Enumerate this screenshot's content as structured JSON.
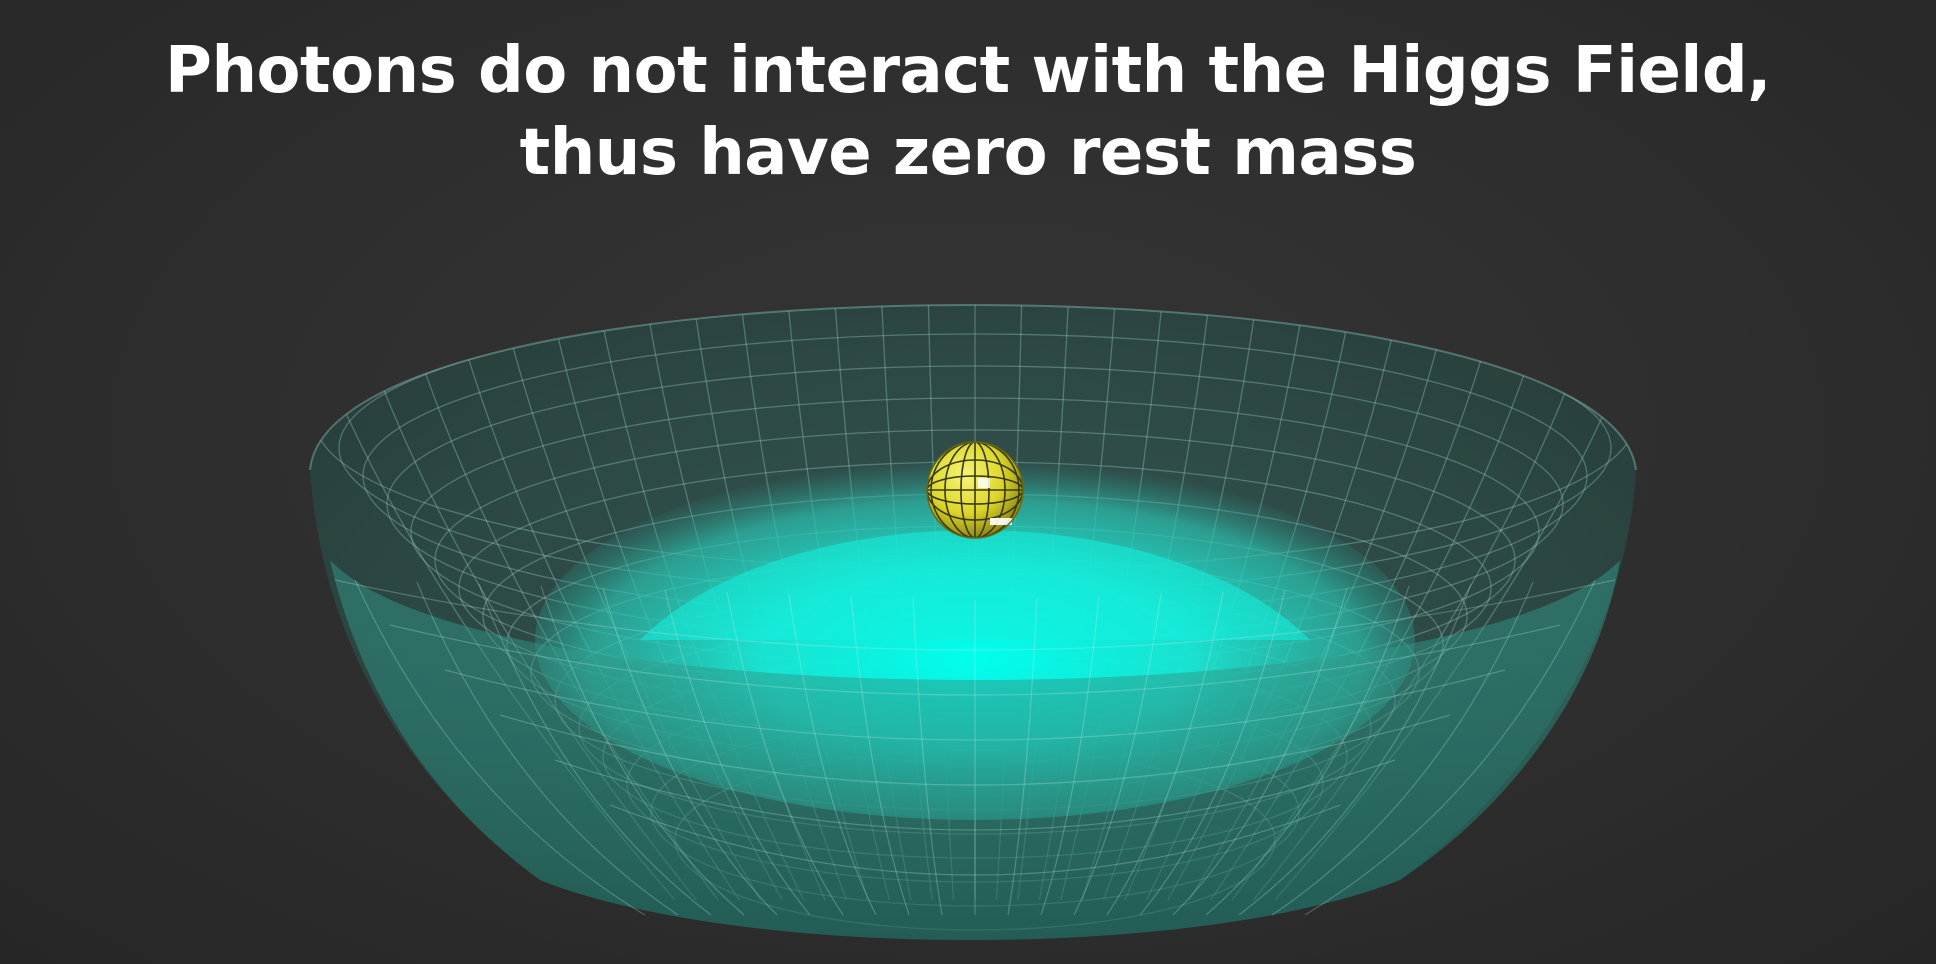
{
  "caption": {
    "line1": "Photons do not interact with the Higgs Field,",
    "line2": "thus have zero rest mass"
  },
  "colors": {
    "background": "#2e2e2e",
    "caption_text": "#ffffff",
    "potential_surface": "#2e8a7a",
    "field_glow": "#00ffee",
    "mesh_lines": "#9fd8cf",
    "particle": "#e8e43a"
  },
  "icons": {
    "particle": "photon-sphere-icon"
  }
}
